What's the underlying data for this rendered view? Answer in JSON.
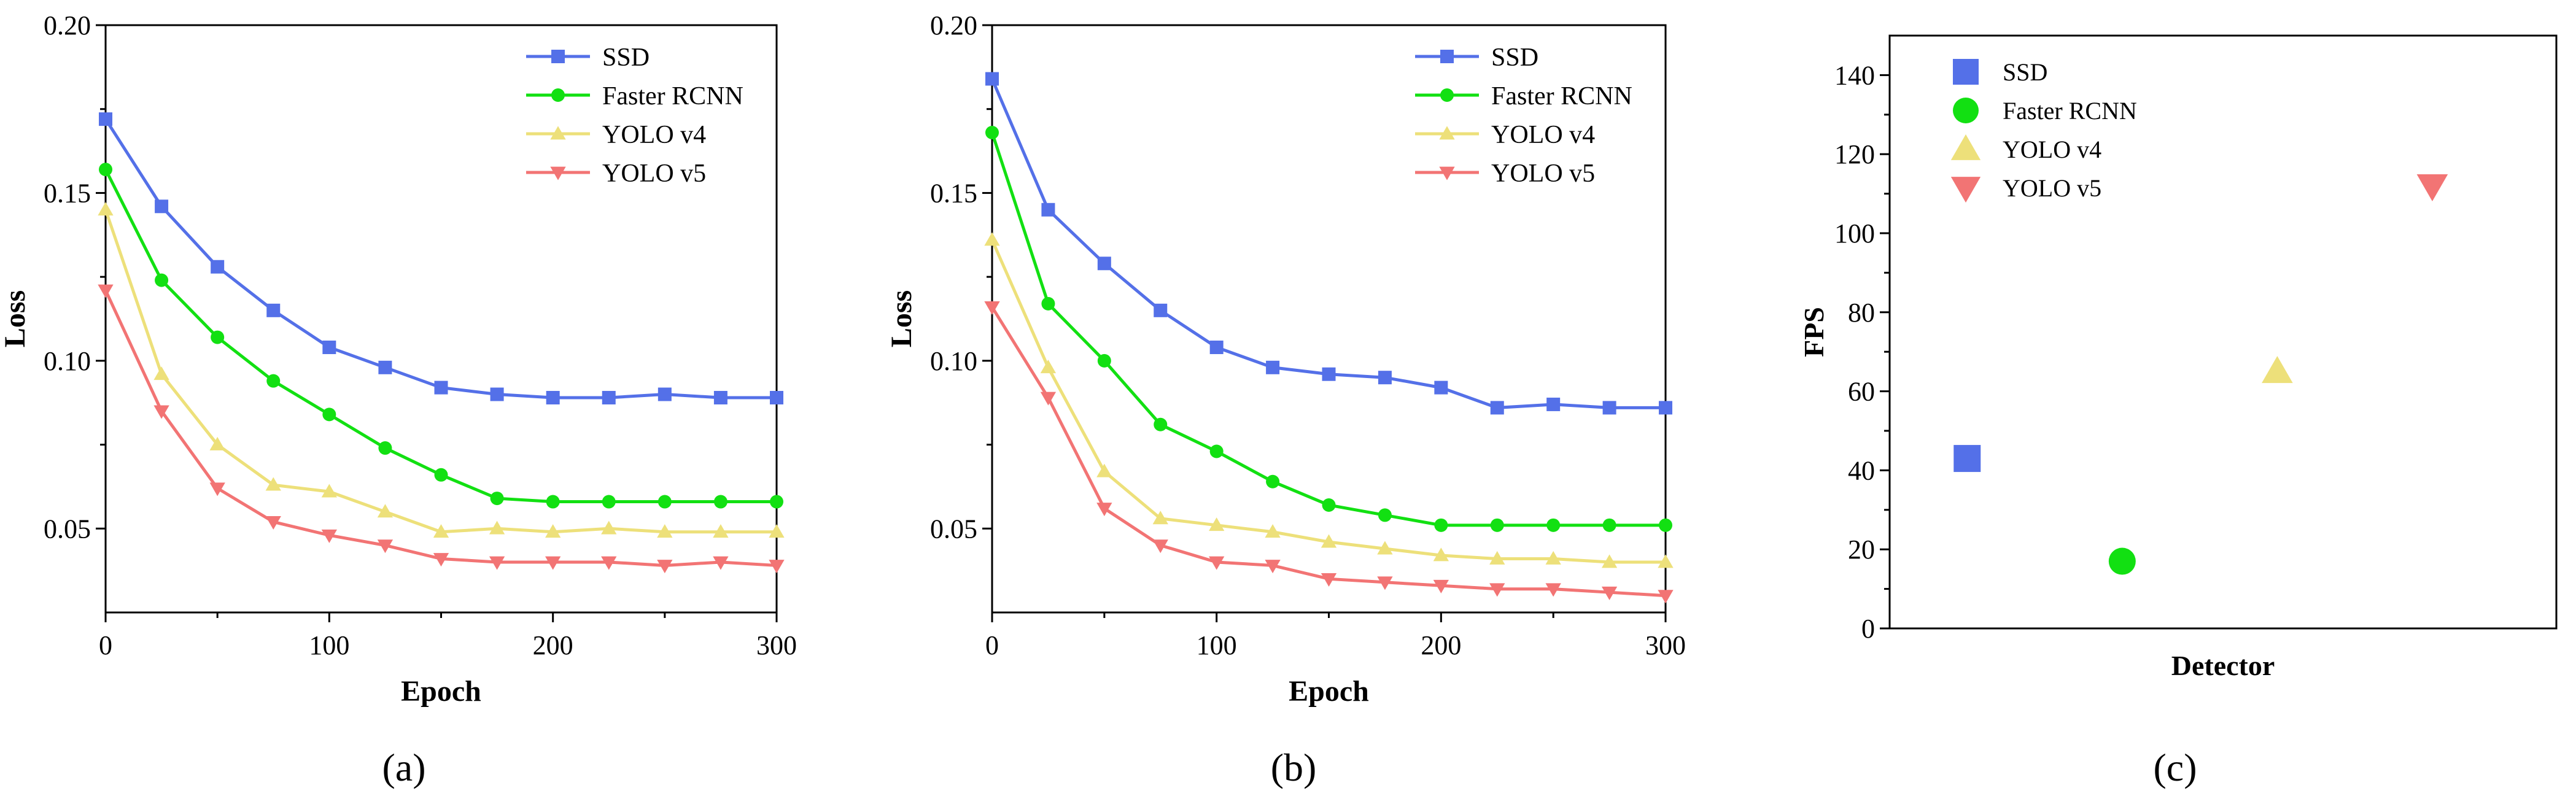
{
  "chart_data": [
    {
      "type": "line",
      "panel": "(a)",
      "xlabel": "Epoch",
      "ylabel": "Loss",
      "xlim": [
        0,
        300
      ],
      "ylim": [
        0.025,
        0.2
      ],
      "xticks": [
        0,
        100,
        200,
        300
      ],
      "yticks": [
        0.05,
        0.1,
        0.15,
        0.2
      ],
      "ytick_labels": [
        "0.05",
        "0.10",
        "0.15",
        "0.20"
      ],
      "legend_position": "top-right",
      "x": [
        0,
        25,
        50,
        75,
        100,
        125,
        150,
        175,
        200,
        225,
        250,
        275,
        300
      ],
      "series": [
        {
          "name": "SSD",
          "color": "#5470e8",
          "marker": "square",
          "values": [
            0.172,
            0.146,
            0.128,
            0.115,
            0.104,
            0.098,
            0.092,
            0.09,
            0.089,
            0.089,
            0.09,
            0.089,
            0.089
          ]
        },
        {
          "name": "Faster RCNN",
          "color": "#12e012",
          "marker": "circle",
          "values": [
            0.157,
            0.124,
            0.107,
            0.094,
            0.084,
            0.074,
            0.066,
            0.059,
            0.058,
            0.058,
            0.058,
            0.058,
            0.058
          ]
        },
        {
          "name": "YOLO v4",
          "color": "#ede07a",
          "marker": "triangle-up",
          "values": [
            0.145,
            0.096,
            0.075,
            0.063,
            0.061,
            0.055,
            0.049,
            0.05,
            0.049,
            0.05,
            0.049,
            0.049,
            0.049
          ]
        },
        {
          "name": "YOLO v5",
          "color": "#f27474",
          "marker": "triangle-down",
          "values": [
            0.121,
            0.085,
            0.062,
            0.052,
            0.048,
            0.045,
            0.041,
            0.04,
            0.04,
            0.04,
            0.039,
            0.04,
            0.039
          ]
        }
      ]
    },
    {
      "type": "line",
      "panel": "(b)",
      "xlabel": "Epoch",
      "ylabel": "Loss",
      "xlim": [
        0,
        300
      ],
      "ylim": [
        0.025,
        0.2
      ],
      "xticks": [
        0,
        100,
        200,
        300
      ],
      "yticks": [
        0.05,
        0.1,
        0.15,
        0.2
      ],
      "ytick_labels": [
        "0.05",
        "0.10",
        "0.15",
        "0.20"
      ],
      "legend_position": "top-right",
      "x": [
        0,
        25,
        50,
        75,
        100,
        125,
        150,
        175,
        200,
        225,
        250,
        275,
        300
      ],
      "series": [
        {
          "name": "SSD",
          "color": "#5470e8",
          "marker": "square",
          "values": [
            0.184,
            0.145,
            0.129,
            0.115,
            0.104,
            0.098,
            0.096,
            0.095,
            0.092,
            0.086,
            0.087,
            0.086,
            0.086
          ]
        },
        {
          "name": "Faster RCNN",
          "color": "#12e012",
          "marker": "circle",
          "values": [
            0.168,
            0.117,
            0.1,
            0.081,
            0.073,
            0.064,
            0.057,
            0.054,
            0.051,
            0.051,
            0.051,
            0.051,
            0.051
          ]
        },
        {
          "name": "YOLO v4",
          "color": "#ede07a",
          "marker": "triangle-up",
          "values": [
            0.136,
            0.098,
            0.067,
            0.053,
            0.051,
            0.049,
            0.046,
            0.044,
            0.042,
            0.041,
            0.041,
            0.04,
            0.04
          ]
        },
        {
          "name": "YOLO v5",
          "color": "#f27474",
          "marker": "triangle-down",
          "values": [
            0.116,
            0.089,
            0.056,
            0.045,
            0.04,
            0.039,
            0.035,
            0.034,
            0.033,
            0.032,
            0.032,
            0.031,
            0.03
          ]
        }
      ]
    },
    {
      "type": "scatter",
      "panel": "(c)",
      "xlabel": "Detector",
      "ylabel": "FPS",
      "ylim": [
        0,
        150
      ],
      "yticks": [
        0,
        20,
        40,
        60,
        80,
        100,
        120,
        140
      ],
      "legend_position": "top-left",
      "series": [
        {
          "name": "SSD",
          "color": "#5470e8",
          "marker": "square",
          "x": 1,
          "y": 43
        },
        {
          "name": "Faster RCNN",
          "color": "#12e012",
          "marker": "circle",
          "x": 2,
          "y": 17
        },
        {
          "name": "YOLO v4",
          "color": "#ede07a",
          "marker": "triangle-up",
          "x": 3,
          "y": 65
        },
        {
          "name": "YOLO v5",
          "color": "#f27474",
          "marker": "triangle-down",
          "x": 4,
          "y": 112
        }
      ]
    }
  ]
}
